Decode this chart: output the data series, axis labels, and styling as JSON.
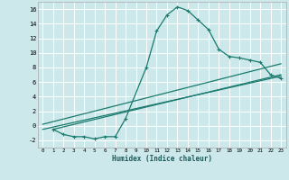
{
  "xlabel": "Humidex (Indice chaleur)",
  "background_color": "#cce8ea",
  "grid_color": "#ffffff",
  "line_color": "#1a7a6e",
  "xlim": [
    -0.5,
    23.5
  ],
  "ylim": [
    -3.0,
    17.0
  ],
  "xticks": [
    0,
    1,
    2,
    3,
    4,
    5,
    6,
    7,
    8,
    9,
    10,
    11,
    12,
    13,
    14,
    15,
    16,
    17,
    18,
    19,
    20,
    21,
    22,
    23
  ],
  "yticks": [
    -2,
    0,
    2,
    4,
    6,
    8,
    10,
    12,
    14,
    16
  ],
  "curve_x": [
    1,
    2,
    3,
    4,
    5,
    6,
    7,
    8,
    10,
    11,
    12,
    13,
    14,
    15,
    16,
    17,
    18,
    19,
    20,
    21,
    22,
    23
  ],
  "curve_y": [
    -0.5,
    -1.2,
    -1.5,
    -1.5,
    -1.8,
    -1.5,
    -1.5,
    1.0,
    8.0,
    13.0,
    15.2,
    16.3,
    15.8,
    14.5,
    13.2,
    10.5,
    9.5,
    9.3,
    9.0,
    8.7,
    7.0,
    6.5
  ],
  "line1_x": [
    0,
    23
  ],
  "line1_y": [
    -0.5,
    6.8
  ],
  "line2_x": [
    0,
    23
  ],
  "line2_y": [
    0.2,
    8.5
  ],
  "line3_x": [
    1,
    23
  ],
  "line3_y": [
    -0.5,
    7.0
  ]
}
